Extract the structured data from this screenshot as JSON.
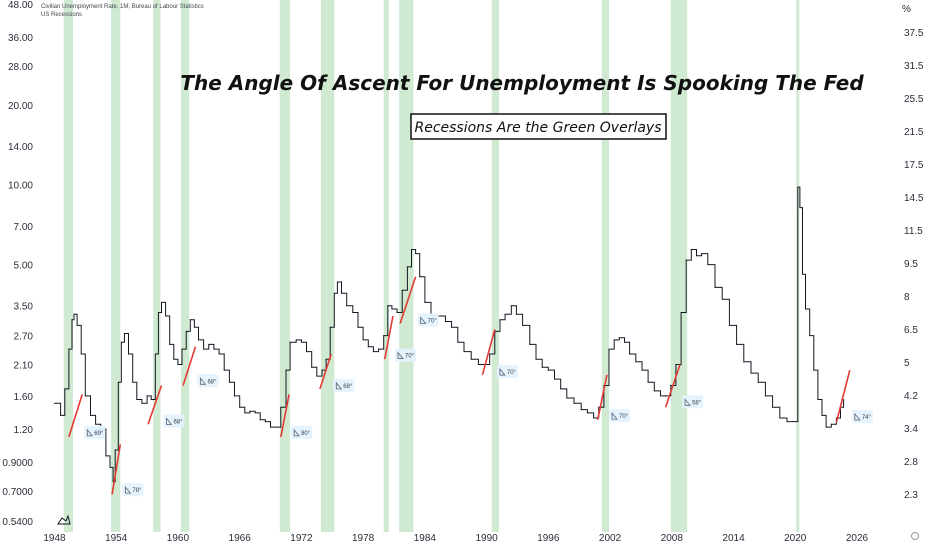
{
  "chart_data": {
    "type": "line",
    "legend": {
      "series_line": "Civilian Unemployment Rate, 1M, Bureau of Labour Statistics",
      "overlay_line": "US Recessions"
    },
    "title": "The Angle Of Ascent For Unemployment Is Spooking The Fed",
    "subtitle": "Recessions Are the Green Overlays",
    "left_axis_ticks": [
      "48.00",
      "36.00",
      "28.00",
      "20.00",
      "14.00",
      "10.00",
      "7.00",
      "5.00",
      "3.50",
      "2.70",
      "2.10",
      "1.60",
      "1.20",
      "0.9000",
      "0.7000",
      "0.5400"
    ],
    "right_axis_unit": "%",
    "right_axis_ticks": [
      "37.5",
      "31.5",
      "25.5",
      "21.5",
      "17.5",
      "14.5",
      "11.5",
      "9.5",
      "8",
      "6.5",
      "5",
      "4.2",
      "3.4",
      "2.8",
      "2.3"
    ],
    "x_ticks": [
      "1948",
      "1954",
      "1960",
      "1966",
      "1972",
      "1978",
      "1984",
      "1990",
      "1996",
      "2002",
      "2008",
      "2014",
      "2020",
      "2026"
    ],
    "log_scale": true,
    "xlim": [
      1946.4,
      2029.5
    ],
    "ylim": [
      0.54,
      48
    ],
    "series": [
      {
        "color": "#131722",
        "points": [
          [
            1948.0,
            1.5
          ],
          [
            1948.6,
            1.35
          ],
          [
            1949.0,
            1.7
          ],
          [
            1949.4,
            2.4
          ],
          [
            1949.7,
            3.1
          ],
          [
            1949.9,
            3.25
          ],
          [
            1950.2,
            2.95
          ],
          [
            1950.6,
            2.3
          ],
          [
            1951.0,
            1.6
          ],
          [
            1951.5,
            1.35
          ],
          [
            1952.0,
            1.25
          ],
          [
            1952.5,
            1.2
          ],
          [
            1953.0,
            0.95
          ],
          [
            1953.4,
            0.86
          ],
          [
            1953.7,
            0.76
          ],
          [
            1953.9,
            1.0
          ],
          [
            1954.2,
            1.8
          ],
          [
            1954.5,
            2.55
          ],
          [
            1954.8,
            2.75
          ],
          [
            1955.2,
            2.3
          ],
          [
            1955.6,
            1.8
          ],
          [
            1956.0,
            1.55
          ],
          [
            1956.5,
            1.5
          ],
          [
            1957.0,
            1.6
          ],
          [
            1957.4,
            1.55
          ],
          [
            1957.8,
            2.3
          ],
          [
            1958.1,
            3.3
          ],
          [
            1958.4,
            3.6
          ],
          [
            1958.8,
            3.2
          ],
          [
            1959.2,
            2.5
          ],
          [
            1959.6,
            2.2
          ],
          [
            1960.0,
            2.1
          ],
          [
            1960.4,
            2.4
          ],
          [
            1960.8,
            2.8
          ],
          [
            1961.2,
            3.1
          ],
          [
            1961.6,
            2.9
          ],
          [
            1962.0,
            2.6
          ],
          [
            1962.5,
            2.4
          ],
          [
            1963.0,
            2.5
          ],
          [
            1963.5,
            2.4
          ],
          [
            1964.0,
            2.3
          ],
          [
            1964.5,
            2.0
          ],
          [
            1965.0,
            1.8
          ],
          [
            1965.5,
            1.6
          ],
          [
            1966.0,
            1.45
          ],
          [
            1966.5,
            1.38
          ],
          [
            1967.0,
            1.4
          ],
          [
            1967.5,
            1.38
          ],
          [
            1968.0,
            1.3
          ],
          [
            1968.5,
            1.28
          ],
          [
            1969.0,
            1.22
          ],
          [
            1969.6,
            1.22
          ],
          [
            1970.0,
            1.45
          ],
          [
            1970.5,
            2.0
          ],
          [
            1970.9,
            2.55
          ],
          [
            1971.5,
            2.6
          ],
          [
            1972.0,
            2.55
          ],
          [
            1972.5,
            2.35
          ],
          [
            1973.0,
            2.05
          ],
          [
            1973.5,
            1.9
          ],
          [
            1974.0,
            2.0
          ],
          [
            1974.4,
            2.2
          ],
          [
            1974.8,
            2.9
          ],
          [
            1975.2,
            3.9
          ],
          [
            1975.5,
            4.3
          ],
          [
            1975.9,
            3.9
          ],
          [
            1976.4,
            3.5
          ],
          [
            1977.0,
            3.3
          ],
          [
            1977.5,
            2.9
          ],
          [
            1978.0,
            2.6
          ],
          [
            1978.5,
            2.45
          ],
          [
            1979.0,
            2.35
          ],
          [
            1979.5,
            2.4
          ],
          [
            1980.0,
            2.7
          ],
          [
            1980.4,
            3.5
          ],
          [
            1980.8,
            3.4
          ],
          [
            1981.3,
            3.3
          ],
          [
            1981.8,
            4.0
          ],
          [
            1982.3,
            4.9
          ],
          [
            1982.7,
            5.7
          ],
          [
            1983.1,
            5.5
          ],
          [
            1983.5,
            4.5
          ],
          [
            1984.0,
            3.6
          ],
          [
            1984.6,
            3.2
          ],
          [
            1985.2,
            3.2
          ],
          [
            1986.0,
            3.05
          ],
          [
            1986.6,
            2.9
          ],
          [
            1987.2,
            2.55
          ],
          [
            1987.8,
            2.35
          ],
          [
            1988.5,
            2.2
          ],
          [
            1989.2,
            2.1
          ],
          [
            1989.8,
            2.1
          ],
          [
            1990.3,
            2.3
          ],
          [
            1990.8,
            2.8
          ],
          [
            1991.3,
            3.1
          ],
          [
            1991.8,
            3.25
          ],
          [
            1992.4,
            3.5
          ],
          [
            1992.9,
            3.25
          ],
          [
            1993.5,
            2.95
          ],
          [
            1994.2,
            2.5
          ],
          [
            1994.8,
            2.2
          ],
          [
            1995.4,
            2.05
          ],
          [
            1996.0,
            2.0
          ],
          [
            1996.6,
            1.85
          ],
          [
            1997.2,
            1.7
          ],
          [
            1997.8,
            1.57
          ],
          [
            1998.5,
            1.5
          ],
          [
            1999.2,
            1.42
          ],
          [
            1999.8,
            1.38
          ],
          [
            2000.4,
            1.32
          ],
          [
            2000.9,
            1.45
          ],
          [
            2001.4,
            1.75
          ],
          [
            2001.9,
            2.4
          ],
          [
            2002.4,
            2.6
          ],
          [
            2002.9,
            2.65
          ],
          [
            2003.4,
            2.55
          ],
          [
            2003.9,
            2.3
          ],
          [
            2004.5,
            2.15
          ],
          [
            2005.1,
            2.0
          ],
          [
            2005.7,
            1.8
          ],
          [
            2006.3,
            1.67
          ],
          [
            2006.9,
            1.6
          ],
          [
            2007.4,
            1.6
          ],
          [
            2007.9,
            1.75
          ],
          [
            2008.4,
            2.1
          ],
          [
            2008.9,
            3.3
          ],
          [
            2009.4,
            5.2
          ],
          [
            2009.9,
            5.7
          ],
          [
            2010.4,
            5.4
          ],
          [
            2010.9,
            5.5
          ],
          [
            2011.5,
            5.0
          ],
          [
            2012.2,
            4.1
          ],
          [
            2012.9,
            3.7
          ],
          [
            2013.6,
            2.95
          ],
          [
            2014.3,
            2.5
          ],
          [
            2015.0,
            2.15
          ],
          [
            2015.7,
            1.95
          ],
          [
            2016.4,
            1.8
          ],
          [
            2017.1,
            1.6
          ],
          [
            2017.8,
            1.45
          ],
          [
            2018.5,
            1.32
          ],
          [
            2019.2,
            1.28
          ],
          [
            2019.8,
            1.28
          ],
          [
            2020.0,
            1.28
          ],
          [
            2020.25,
            9.8
          ],
          [
            2020.45,
            8.2
          ],
          [
            2020.7,
            4.6
          ],
          [
            2021.0,
            3.4
          ],
          [
            2021.4,
            2.7
          ],
          [
            2021.8,
            2.0
          ],
          [
            2022.2,
            1.55
          ],
          [
            2022.6,
            1.35
          ],
          [
            2023.0,
            1.22
          ],
          [
            2023.5,
            1.25
          ],
          [
            2024.0,
            1.32
          ],
          [
            2024.4,
            1.45
          ],
          [
            2024.7,
            1.55
          ]
        ]
      }
    ],
    "recessions": [
      [
        1948.9,
        1949.8
      ],
      [
        1953.5,
        1954.4
      ],
      [
        1957.6,
        1958.3
      ],
      [
        1960.3,
        1961.1
      ],
      [
        1969.9,
        1970.9
      ],
      [
        1973.9,
        1975.2
      ],
      [
        1980.0,
        1980.5
      ],
      [
        1981.5,
        1982.9
      ],
      [
        1990.5,
        1991.2
      ],
      [
        2001.2,
        2001.9
      ],
      [
        2007.9,
        2009.5
      ],
      [
        2020.1,
        2020.3
      ]
    ],
    "angle_lines": [
      {
        "x1": 1949.4,
        "y1": 1.12,
        "x2": 1950.7,
        "y2": 1.62,
        "label": "69°",
        "lx": 1950.9,
        "ly": 1.15
      },
      {
        "x1": 1953.6,
        "y1": 0.68,
        "x2": 1954.4,
        "y2": 1.05,
        "label": "78°",
        "lx": 1954.6,
        "ly": 0.7
      },
      {
        "x1": 1957.1,
        "y1": 1.25,
        "x2": 1958.4,
        "y2": 1.75,
        "label": "68°",
        "lx": 1958.6,
        "ly": 1.27
      },
      {
        "x1": 1960.5,
        "y1": 1.75,
        "x2": 1961.7,
        "y2": 2.45,
        "label": "68°",
        "lx": 1961.9,
        "ly": 1.8
      },
      {
        "x1": 1970.0,
        "y1": 1.12,
        "x2": 1970.8,
        "y2": 1.62,
        "label": "80°",
        "lx": 1971.0,
        "ly": 1.15
      },
      {
        "x1": 1973.8,
        "y1": 1.7,
        "x2": 1974.9,
        "y2": 2.3,
        "label": "68°",
        "lx": 1975.1,
        "ly": 1.73
      },
      {
        "x1": 1980.1,
        "y1": 2.2,
        "x2": 1980.9,
        "y2": 3.2,
        "label": "70°",
        "lx": 1981.1,
        "ly": 2.25
      },
      {
        "x1": 1981.6,
        "y1": 3.0,
        "x2": 1983.1,
        "y2": 4.5,
        "label": "70°",
        "lx": 1983.3,
        "ly": 3.05
      },
      {
        "x1": 1989.6,
        "y1": 1.92,
        "x2": 1990.8,
        "y2": 2.85,
        "label": "70°",
        "lx": 1991.0,
        "ly": 1.95
      },
      {
        "x1": 2000.8,
        "y1": 1.3,
        "x2": 2001.7,
        "y2": 1.92,
        "label": "70°",
        "lx": 2001.9,
        "ly": 1.33
      },
      {
        "x1": 2007.4,
        "y1": 1.45,
        "x2": 2008.8,
        "y2": 2.1,
        "label": "58°",
        "lx": 2009.0,
        "ly": 1.5
      },
      {
        "x1": 2024.0,
        "y1": 1.27,
        "x2": 2025.3,
        "y2": 2.0,
        "label": "74°",
        "lx": 2025.5,
        "ly": 1.32
      }
    ]
  }
}
